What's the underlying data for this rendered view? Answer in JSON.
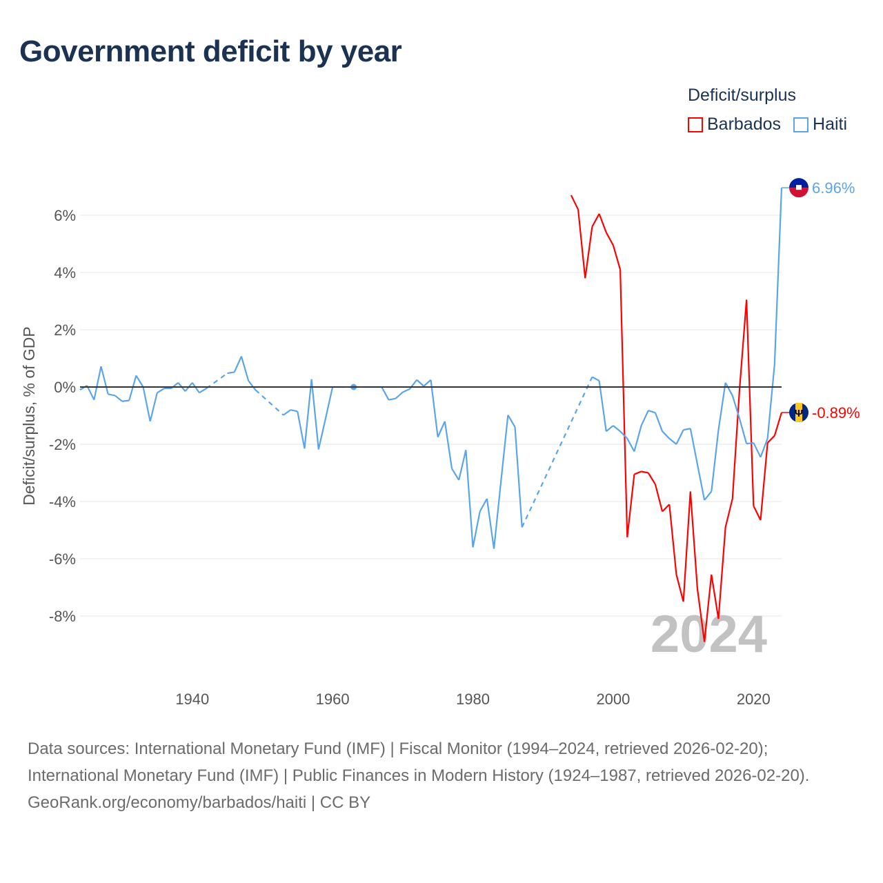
{
  "title": "Government deficit by year",
  "legend": {
    "title": "Deficit/surplus",
    "items": [
      {
        "label": "Barbados",
        "color": "#ff0000"
      },
      {
        "label": "Haiti",
        "color": "#5aa5ea"
      }
    ]
  },
  "footer": {
    "sources": "Data sources: International Monetary Fund (IMF) | Fiscal Monitor (1994–2024, retrieved 2026-02-20); International Monetary Fund (IMF) | Public Finances in Modern History (1924–1987, retrieved 2026-02-20).",
    "credit": "GeoRank.org/economy/barbados/haiti | CC BY"
  },
  "chart_data": {
    "type": "line",
    "title": "Government deficit by year",
    "ylabel": "Deficit/surplus, % of GDP",
    "xlabel": "",
    "xlim": [
      1924,
      2024
    ],
    "ylim": [
      -10,
      7.5
    ],
    "x_ticks": [
      1940,
      1960,
      1980,
      2000,
      2020
    ],
    "x_tick_labels": [
      "1940",
      "1960",
      "1980",
      "2000",
      "2020"
    ],
    "y_ticks": [
      -8,
      -6,
      -4,
      -2,
      0,
      2,
      4,
      6
    ],
    "y_tick_labels": [
      "-8%",
      "-6%",
      "-4%",
      "-2%",
      "0%",
      "2%",
      "4%",
      "6%"
    ],
    "watermark_year": "2024",
    "series": [
      {
        "name": "Haiti",
        "color": "#5aa5ea",
        "end_label": "6.96%",
        "start_year": 1924,
        "values": [
          -0.1,
          0.05,
          -0.45,
          0.72,
          -0.25,
          -0.3,
          -0.5,
          -0.47,
          0.4,
          0.0,
          -1.2,
          -0.2,
          -0.05,
          -0.05,
          0.15,
          -0.15,
          0.15,
          -0.2,
          -0.05,
          null,
          null,
          0.48,
          0.52,
          1.07,
          0.22,
          -0.1,
          null,
          null,
          null,
          -0.98,
          -0.8,
          -0.85,
          -2.15,
          0.27,
          -2.18,
          -1.1,
          0.0,
          0.0,
          null,
          0.0,
          null,
          0.0,
          0.0,
          0.0,
          -0.45,
          -0.4,
          -0.18,
          -0.07,
          0.25,
          0.03,
          0.25,
          -1.75,
          -1.2,
          -2.85,
          -3.25,
          -2.2,
          -5.6,
          -4.35,
          -3.9,
          -5.65,
          -3.3,
          -0.98,
          -1.4,
          -4.9,
          null,
          null,
          null,
          null,
          null,
          null,
          null,
          null,
          null,
          0.35,
          0.22,
          -1.55,
          -1.35,
          -1.55,
          -1.8,
          -2.25,
          -1.35,
          -0.82,
          -0.9,
          -1.55,
          -1.8,
          -2.0,
          -1.5,
          -1.45,
          -2.7,
          -3.95,
          -3.65,
          -1.5,
          0.15,
          -0.3,
          -1.1,
          -1.98,
          -1.95,
          -2.45,
          -1.8,
          0.8,
          6.96
        ]
      },
      {
        "name": "Barbados",
        "color": "#ff0000",
        "end_label": "-0.89%",
        "start_year": 1994,
        "values": [
          6.7,
          6.2,
          3.8,
          5.6,
          6.05,
          5.4,
          4.95,
          4.1,
          -5.25,
          -3.05,
          -2.95,
          -3.0,
          -3.4,
          -4.35,
          -4.1,
          -6.55,
          -7.5,
          -3.65,
          -7.05,
          -8.9,
          -6.55,
          -8.1,
          -4.9,
          -3.9,
          -0.1,
          3.05,
          -4.15,
          -4.65,
          -1.95,
          -1.7,
          -0.89
        ]
      }
    ]
  }
}
